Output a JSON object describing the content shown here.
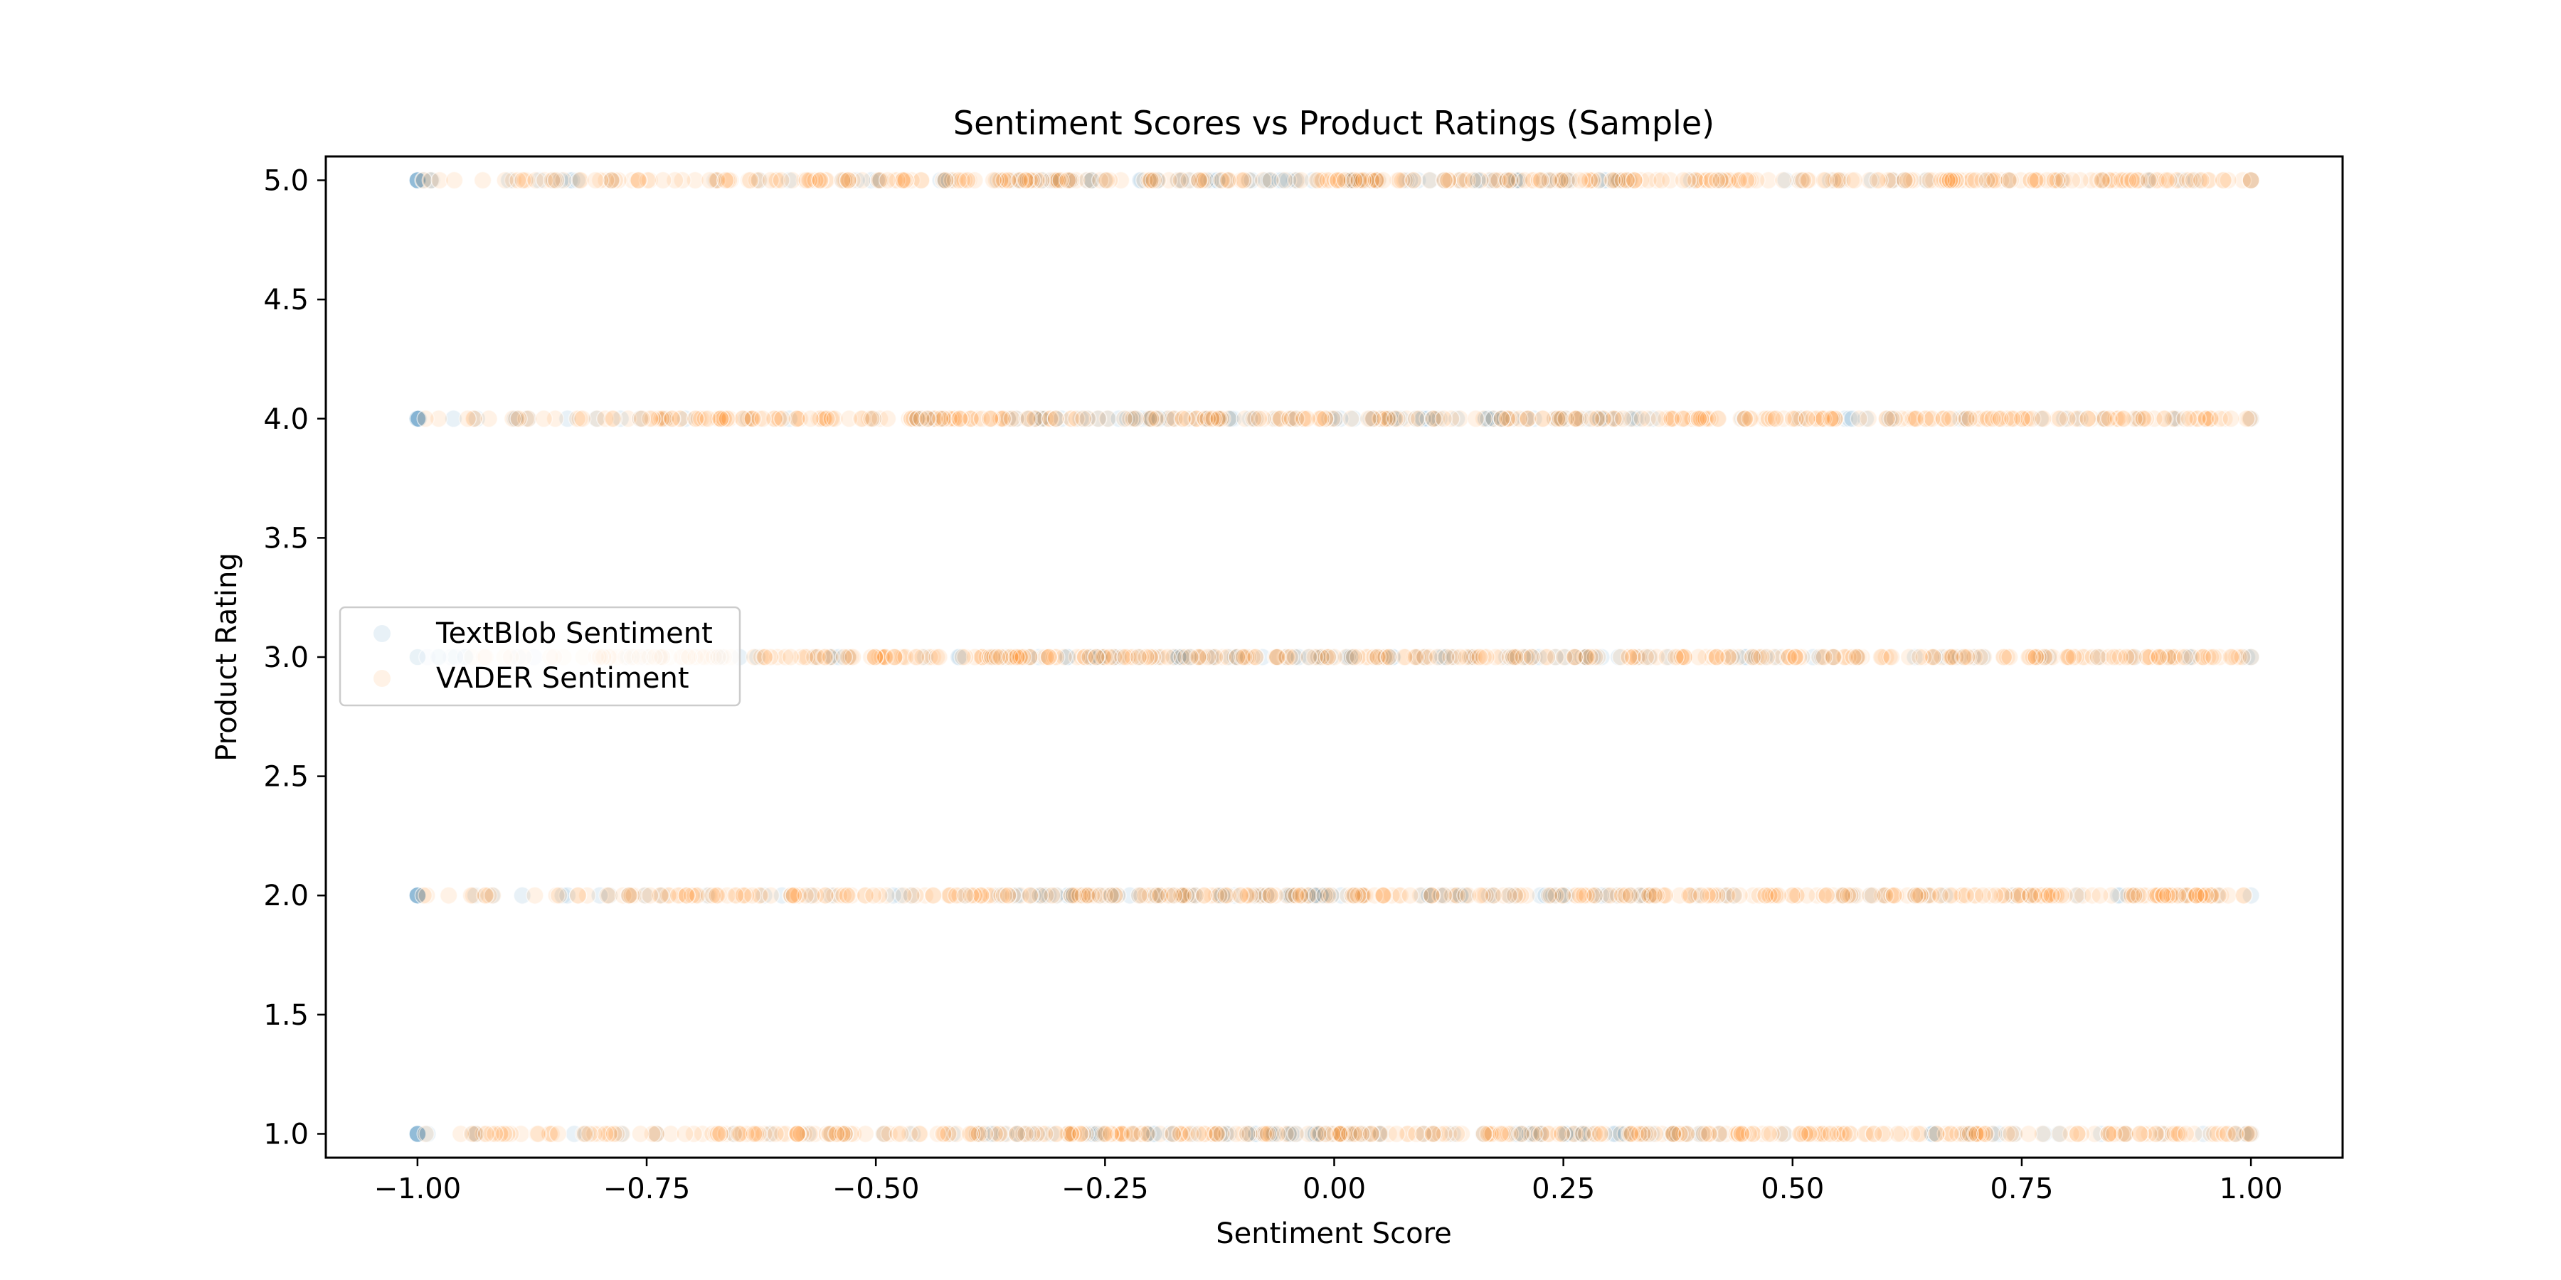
{
  "chart_data": {
    "type": "scatter",
    "title": "Sentiment Scores vs Product Ratings (Sample)",
    "xlabel": "Sentiment Score",
    "ylabel": "Product Rating",
    "xlim": [
      -1.1,
      1.1
    ],
    "ylim": [
      0.9,
      5.1
    ],
    "x_ticks": [
      -1.0,
      -0.75,
      -0.5,
      -0.25,
      0.0,
      0.25,
      0.5,
      0.75,
      1.0
    ],
    "x_tick_labels": [
      "−1.00",
      "−0.75",
      "−0.50",
      "−0.25",
      "0.00",
      "0.25",
      "0.50",
      "0.75",
      "1.00"
    ],
    "y_ticks": [
      1.0,
      1.5,
      2.0,
      2.5,
      3.0,
      3.5,
      4.0,
      4.5,
      5.0
    ],
    "y_tick_labels": [
      "1.0",
      "1.5",
      "2.0",
      "2.5",
      "3.0",
      "3.5",
      "4.0",
      "4.5",
      "5.0"
    ],
    "grid": false,
    "legend_position": "center-left",
    "series": [
      {
        "name": "TextBlob Sentiment",
        "color": "#1f77b4",
        "alpha": 0.1,
        "ratings": [
          1,
          2,
          3,
          4,
          5
        ],
        "x_range": [
          -1.0,
          1.0
        ],
        "approx_points_per_rating": 130
      },
      {
        "name": "VADER Sentiment",
        "color": "#ff7f0e",
        "alpha": 0.1,
        "ratings": [
          1,
          2,
          3,
          4,
          5
        ],
        "x_range": [
          -1.0,
          1.0
        ],
        "approx_points_per_rating": 400
      }
    ]
  }
}
